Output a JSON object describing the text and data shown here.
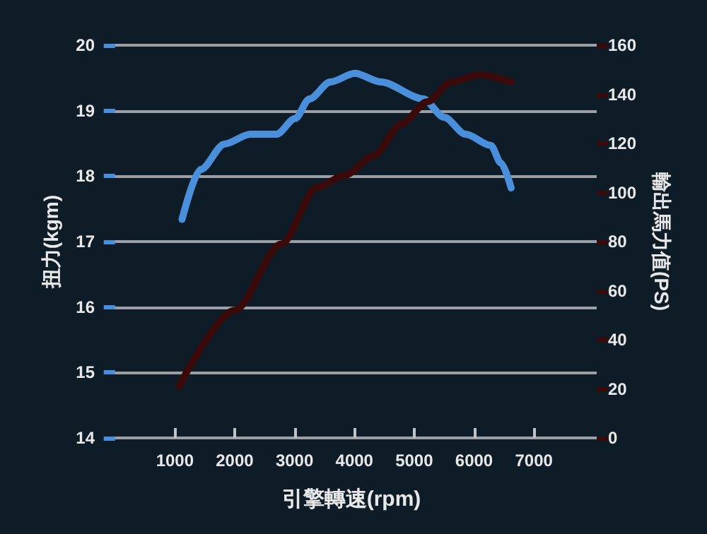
{
  "chart_data": {
    "type": "line",
    "xlabel": "引擎轉速(rpm)",
    "ylabel": "扭力(kgm)",
    "y2label": "輸出馬力值(PS)",
    "xlim": [
      -150,
      8050
    ],
    "xticks": [
      1000,
      2000,
      3000,
      4000,
      5000,
      6000,
      7000
    ],
    "ylim": [
      14,
      20
    ],
    "yticks": [
      14,
      15,
      16,
      17,
      18,
      19,
      20
    ],
    "y2lim": [
      0,
      160
    ],
    "y2ticks": [
      0,
      20,
      40,
      60,
      80,
      100,
      120,
      140,
      160
    ],
    "grid": "y",
    "marker": "none",
    "line_style": "solid",
    "series": [
      {
        "color": "#4a8fdc",
        "x": [
          1120,
          1430,
          1830,
          2260,
          2700,
          3010,
          3250,
          3600,
          4010,
          4440,
          5150,
          5500,
          5860,
          6280,
          6450,
          6620
        ],
        "values": [
          17.34,
          18.1,
          18.49,
          18.64,
          18.64,
          18.88,
          19.18,
          19.44,
          19.57,
          19.44,
          19.18,
          18.9,
          18.64,
          18.47,
          18.2,
          17.82
        ]
      },
      {
        "color": "#3a0a0a",
        "axis": "y2",
        "x": [
          1070,
          2000,
          2780,
          3370,
          3840,
          4320,
          4790,
          5220,
          5620,
          6090,
          6620
        ],
        "values": [
          21,
          52,
          79,
          102,
          107,
          115,
          128,
          137,
          145,
          148,
          145
        ]
      }
    ]
  }
}
